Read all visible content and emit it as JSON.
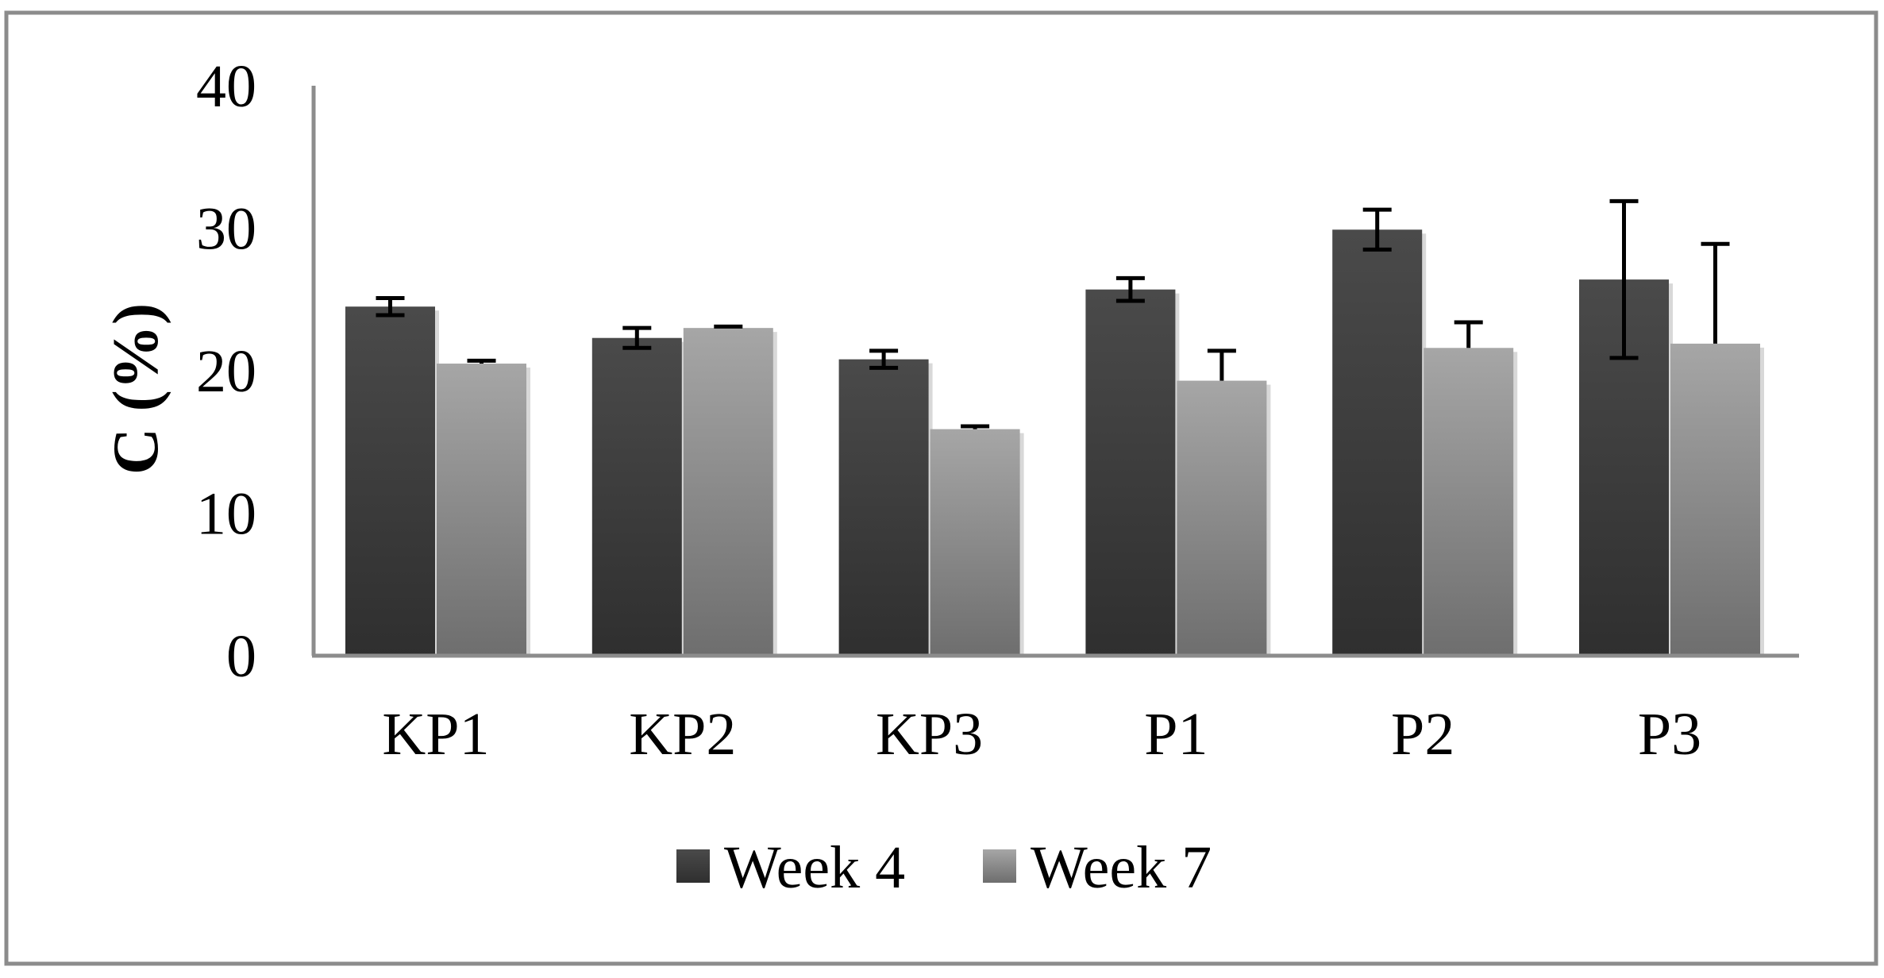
{
  "chart_data": {
    "type": "bar",
    "title": "",
    "xlabel": "",
    "ylabel": "C (%)",
    "ylim": [
      0,
      40
    ],
    "yticks": [
      0,
      10,
      20,
      30,
      40
    ],
    "grid": false,
    "legend_position": "bottom",
    "categories": [
      "KP1",
      "KP2",
      "KP3",
      "P1",
      "P2",
      "P3"
    ],
    "series": [
      {
        "name": "Week 4",
        "color": "#3d3d3d",
        "values": [
          24.5,
          22.3,
          20.8,
          25.7,
          29.9,
          26.4
        ],
        "errors": [
          0.6,
          0.7,
          0.6,
          0.8,
          1.4,
          5.5
        ],
        "error_style": "both"
      },
      {
        "name": "Week 7",
        "color": "#9a9a9a",
        "values": [
          20.5,
          23.0,
          15.9,
          19.3,
          21.6,
          21.9
        ],
        "errors": [
          0.2,
          0.1,
          0.2,
          2.1,
          1.8,
          7.0
        ],
        "error_style": "upper"
      }
    ]
  }
}
